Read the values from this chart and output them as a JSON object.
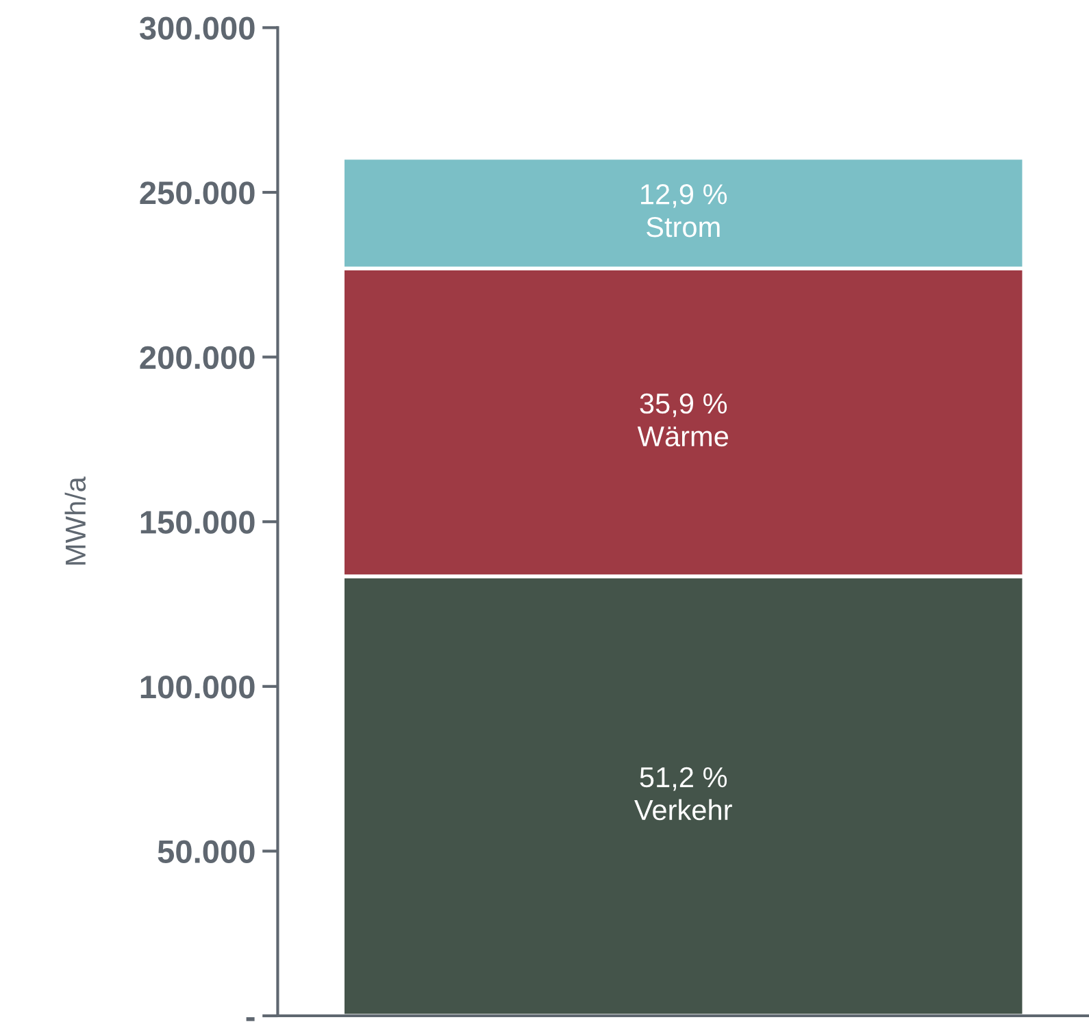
{
  "chart_data": {
    "type": "bar",
    "stacked": true,
    "ylabel": "MWh/a",
    "categories": [
      null
    ],
    "series": [
      {
        "name": "Verkehr",
        "color": "#44544a",
        "values": [
          133400
        ]
      },
      {
        "name": "Wärme",
        "color": "#9e3a44",
        "values": [
          93500
        ]
      },
      {
        "name": "Strom",
        "color": "#7bbfc6",
        "values": [
          33600
        ]
      }
    ],
    "annotations": [
      "51,2 %",
      "35,9 %",
      "12,9 %"
    ],
    "ylim": [
      0,
      300000
    ],
    "yticks": [
      {
        "value": 0,
        "label": "-"
      },
      {
        "value": 50000,
        "label": "50.000"
      },
      {
        "value": 100000,
        "label": "100.000"
      },
      {
        "value": 150000,
        "label": "150.000"
      },
      {
        "value": 200000,
        "label": "200.000"
      },
      {
        "value": 250000,
        "label": "250.000"
      },
      {
        "value": 300000,
        "label": "300.000"
      }
    ],
    "grid": false,
    "legend": false
  }
}
